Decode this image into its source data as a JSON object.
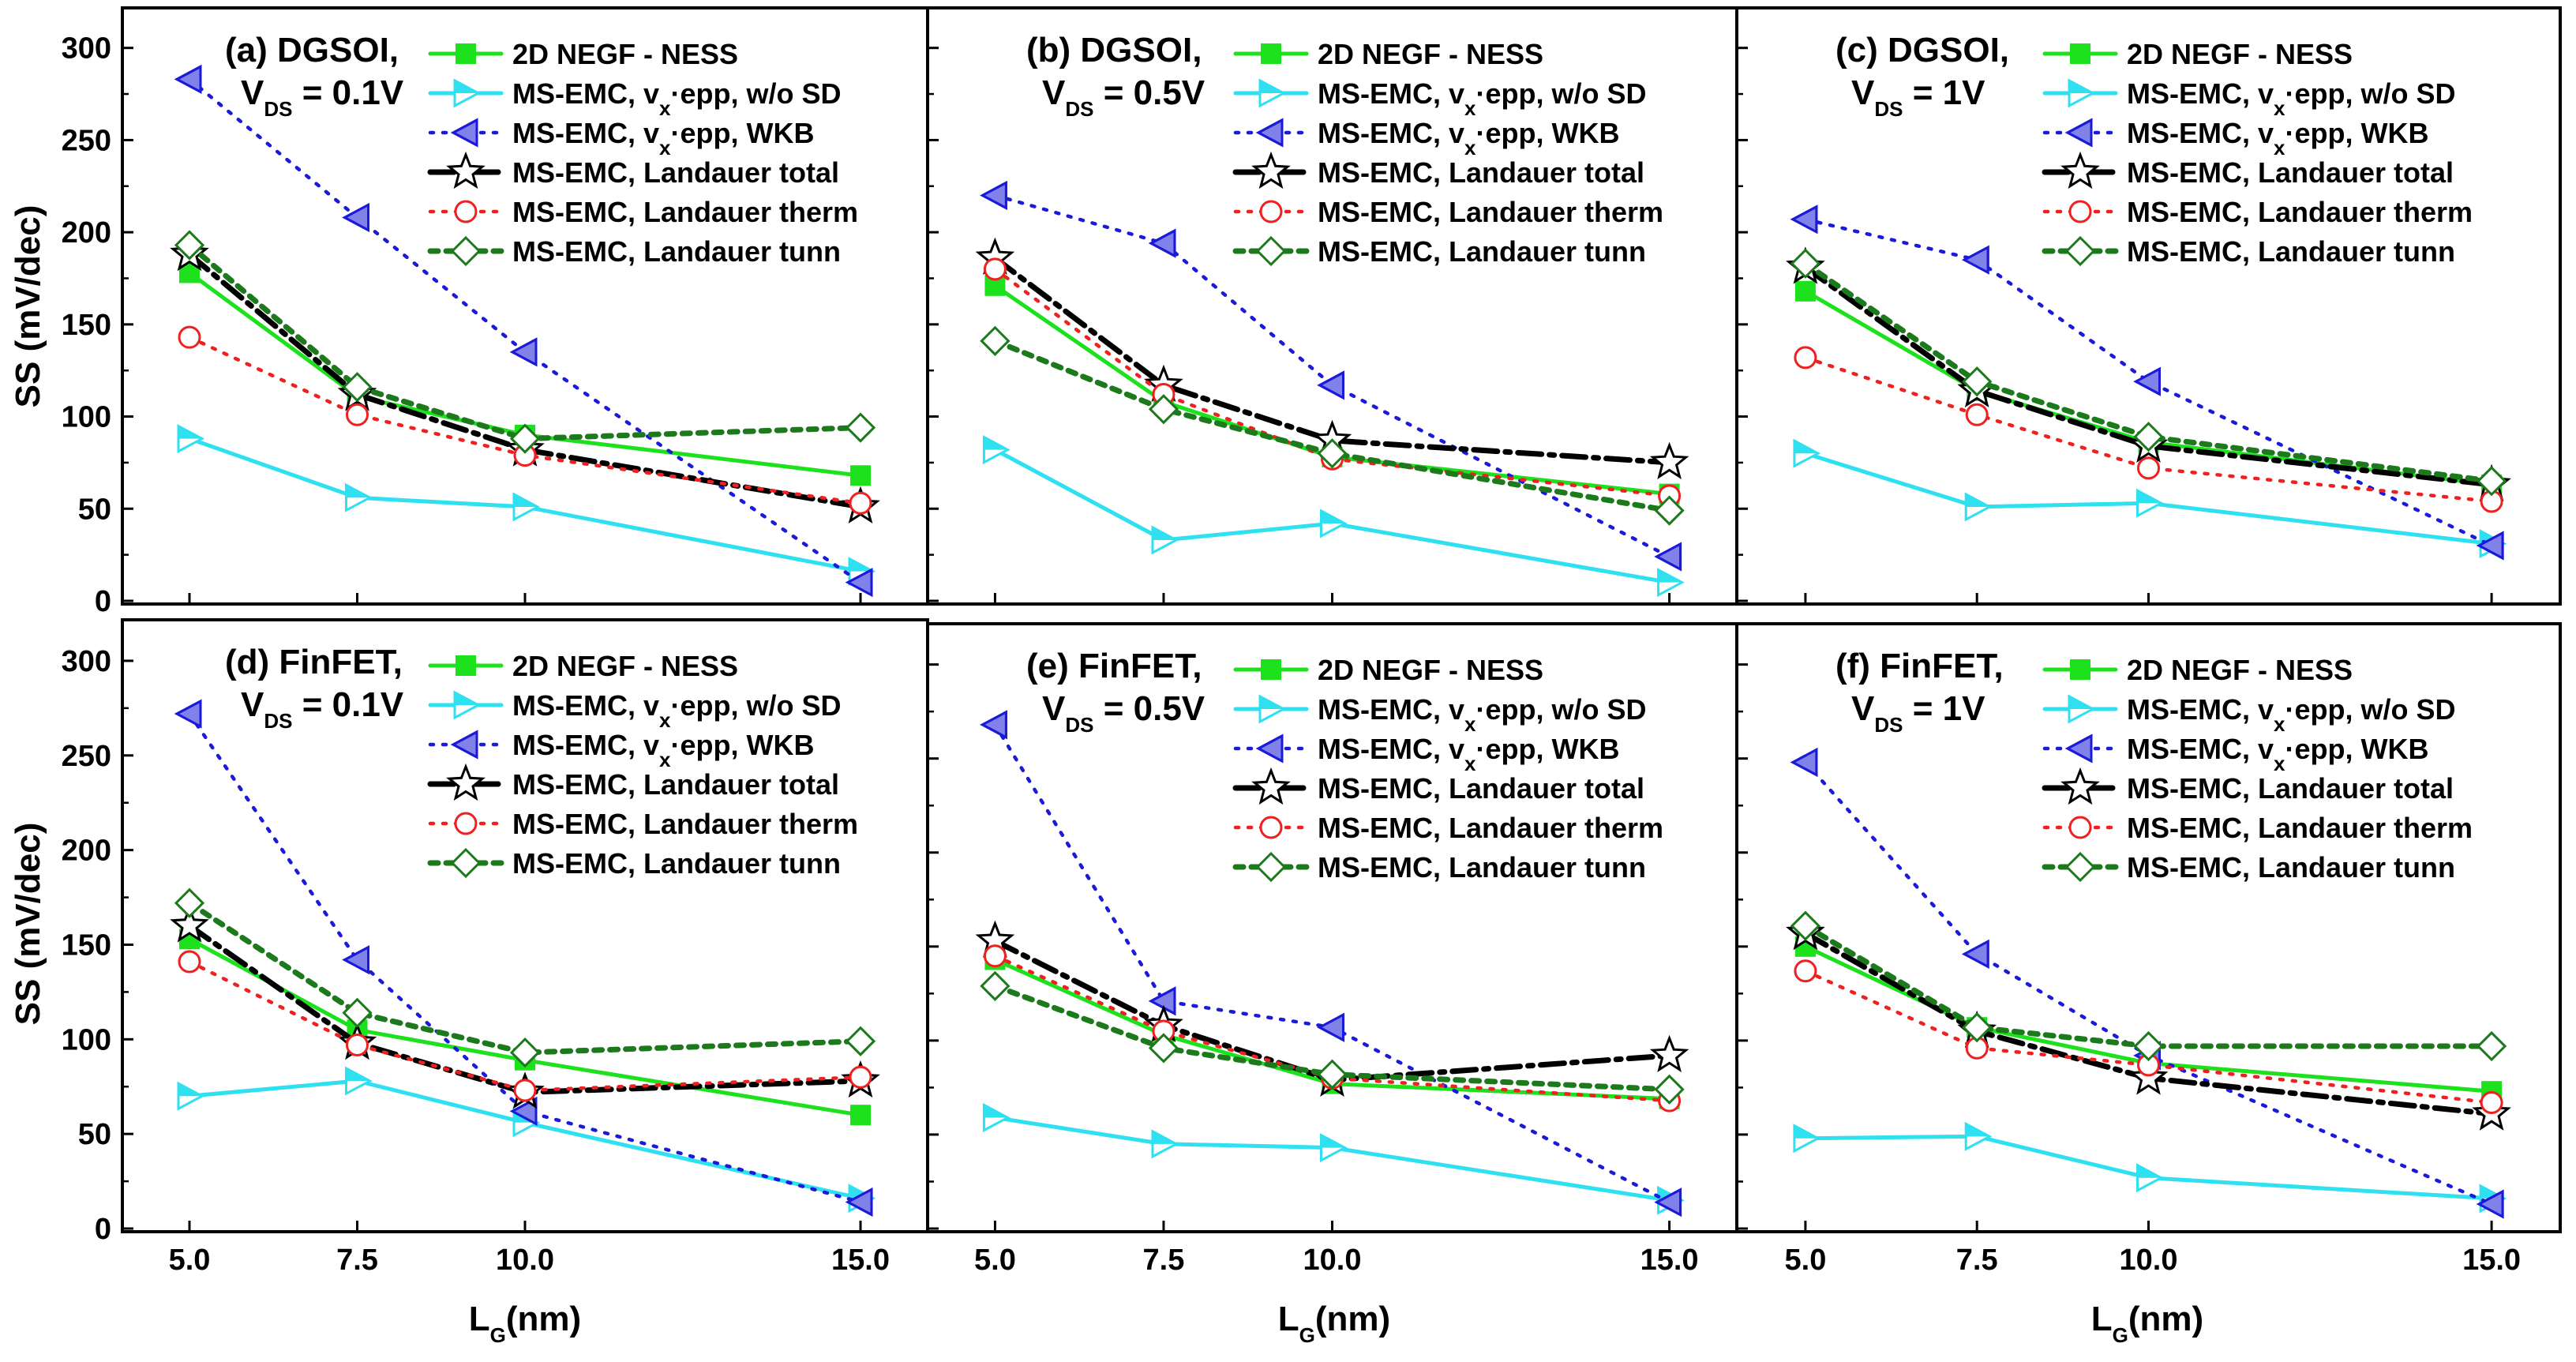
{
  "figure": {
    "y_axis_label": "SS (mV/dec)",
    "x_axis_label": "L",
    "x_axis_label_sub": "G",
    "x_axis_label_unit": "(nm)"
  },
  "legend_entries": [
    {
      "key": "negf",
      "parts": [
        {
          "t": "2D NEGF - NESS"
        }
      ]
    },
    {
      "key": "wosd",
      "parts": [
        {
          "t": "MS-EMC, v"
        },
        {
          "t": "x",
          "sub": true
        },
        {
          "t": "·epp, w/o SD"
        }
      ]
    },
    {
      "key": "wkb",
      "parts": [
        {
          "t": "MS-EMC, v"
        },
        {
          "t": "x",
          "sub": true
        },
        {
          "t": "·epp, WKB"
        }
      ]
    },
    {
      "key": "total",
      "parts": [
        {
          "t": "MS-EMC, Landauer total"
        }
      ]
    },
    {
      "key": "therm",
      "parts": [
        {
          "t": "MS-EMC, Landauer therm"
        }
      ]
    },
    {
      "key": "tunn",
      "parts": [
        {
          "t": "MS-EMC, Landauer tunn"
        }
      ]
    }
  ],
  "series_styles": {
    "negf": {
      "color": "#1ee11e",
      "dash": "",
      "width": 5,
      "marker": "square-filled"
    },
    "wosd": {
      "color": "#2ee0f0",
      "dash": "",
      "width": 5,
      "marker": "triangle-right-half"
    },
    "wkb": {
      "color": "#1a1ad8",
      "dash": "4 12",
      "width": 4.5,
      "marker": "triangle-left-half"
    },
    "total": {
      "color": "#000000",
      "dash": "30 10 6 10",
      "width": 7,
      "marker": "star-open"
    },
    "therm": {
      "color": "#ee2020",
      "dash": "4 12",
      "width": 4.5,
      "marker": "circle-open"
    },
    "tunn": {
      "color": "#1c7a1c",
      "dash": "10 10",
      "width": 7,
      "marker": "diamond-open"
    }
  },
  "chart_data": [
    {
      "type": "line",
      "panel": "a",
      "title_line1": "(a) DGSOI,",
      "title_line2_main": "V",
      "title_line2_sub": "DS",
      "title_line2_rest": " = 0.1V",
      "xlabel": "LG(nm)",
      "ylabel": "SS (mV/dec)",
      "x": [
        5.0,
        7.5,
        10.0,
        15.0
      ],
      "xtick_labels": [
        "5.0",
        "7.5",
        "10.0",
        "15.0"
      ],
      "yticks": [
        0,
        50,
        100,
        150,
        200,
        250,
        300
      ],
      "ylim": [
        0,
        320
      ],
      "series": [
        {
          "key": "negf",
          "name": "2D NEGF - NESS",
          "values": [
            178,
            111,
            90,
            68
          ]
        },
        {
          "key": "wosd",
          "name": "MS-EMC, vx·epp, w/o SD",
          "values": [
            88,
            56,
            51,
            16
          ]
        },
        {
          "key": "wkb",
          "name": "MS-EMC, vx·epp, WKB",
          "values": [
            283,
            208,
            135,
            10
          ]
        },
        {
          "key": "total",
          "name": "MS-EMC, Landauer total",
          "values": [
            188,
            112,
            82,
            51
          ]
        },
        {
          "key": "therm",
          "name": "MS-EMC, Landauer therm",
          "values": [
            143,
            101,
            79,
            53
          ]
        },
        {
          "key": "tunn",
          "name": "MS-EMC, Landauer tunn",
          "values": [
            193,
            116,
            88,
            94
          ]
        }
      ]
    },
    {
      "type": "line",
      "panel": "b",
      "title_line1": "(b) DGSOI,",
      "title_line2_main": "V",
      "title_line2_sub": "DS",
      "title_line2_rest": " = 0.5V",
      "xlabel": "LG(nm)",
      "ylabel": "SS (mV/dec)",
      "x": [
        5.0,
        7.5,
        10.0,
        15.0
      ],
      "xtick_labels": [
        "5.0",
        "7.5",
        "10.0",
        "15.0"
      ],
      "yticks": [
        0,
        50,
        100,
        150,
        200,
        250,
        300
      ],
      "ylim": [
        0,
        320
      ],
      "series": [
        {
          "key": "negf",
          "name": "2D NEGF - NESS",
          "values": [
            171,
            108,
            78,
            58
          ]
        },
        {
          "key": "wosd",
          "name": "MS-EMC, vx·epp, w/o SD",
          "values": [
            82,
            33,
            42,
            10
          ]
        },
        {
          "key": "wkb",
          "name": "MS-EMC, vx·epp, WKB",
          "values": [
            220,
            194,
            117,
            24
          ]
        },
        {
          "key": "total",
          "name": "MS-EMC, Landauer total",
          "values": [
            186,
            117,
            87,
            75
          ]
        },
        {
          "key": "therm",
          "name": "MS-EMC, Landauer therm",
          "values": [
            180,
            112,
            77,
            57
          ]
        },
        {
          "key": "tunn",
          "name": "MS-EMC, Landauer tunn",
          "values": [
            141,
            104,
            80,
            49
          ]
        }
      ]
    },
    {
      "type": "line",
      "panel": "c",
      "title_line1": "(c) DGSOI,",
      "title_line2_main": "V",
      "title_line2_sub": "DS",
      "title_line2_rest": " = 1V",
      "xlabel": "LG(nm)",
      "ylabel": "SS (mV/dec)",
      "x": [
        5.0,
        7.5,
        10.0,
        15.0
      ],
      "xtick_labels": [
        "5.0",
        "7.5",
        "10.0",
        "15.0"
      ],
      "yticks": [
        0,
        50,
        100,
        150,
        200,
        250,
        300
      ],
      "ylim": [
        0,
        320
      ],
      "series": [
        {
          "key": "negf",
          "name": "2D NEGF - NESS",
          "values": [
            168,
            114,
            86,
            63
          ]
        },
        {
          "key": "wosd",
          "name": "MS-EMC, vx·epp, w/o SD",
          "values": [
            80,
            51,
            53,
            31
          ]
        },
        {
          "key": "wkb",
          "name": "MS-EMC, vx·epp, WKB",
          "values": [
            207,
            185,
            119,
            30
          ]
        },
        {
          "key": "total",
          "name": "MS-EMC, Landauer total",
          "values": [
            181,
            114,
            84,
            63
          ]
        },
        {
          "key": "therm",
          "name": "MS-EMC, Landauer therm",
          "values": [
            132,
            101,
            72,
            54
          ]
        },
        {
          "key": "tunn",
          "name": "MS-EMC, Landauer tunn",
          "values": [
            183,
            119,
            89,
            65
          ]
        }
      ]
    },
    {
      "type": "line",
      "panel": "d",
      "title_line1": "(d) FinFET,",
      "title_line2_main": "V",
      "title_line2_sub": "DS",
      "title_line2_rest": " = 0.1V",
      "xlabel": "LG(nm)",
      "ylabel": "SS (mV/dec)",
      "x": [
        5.0,
        7.5,
        10.0,
        15.0
      ],
      "xtick_labels": [
        "5.0",
        "7.5",
        "10.0",
        "15.0"
      ],
      "yticks": [
        0,
        50,
        100,
        150,
        200,
        250,
        300
      ],
      "ylim": [
        0,
        320
      ],
      "series": [
        {
          "key": "negf",
          "name": "2D NEGF - NESS",
          "values": [
            153,
            105,
            89,
            60
          ]
        },
        {
          "key": "wosd",
          "name": "MS-EMC, vx·epp, w/o SD",
          "values": [
            70,
            78,
            56,
            16
          ]
        },
        {
          "key": "wkb",
          "name": "MS-EMC, vx·epp, WKB",
          "values": [
            272,
            142,
            62,
            14
          ]
        },
        {
          "key": "total",
          "name": "MS-EMC, Landauer total",
          "values": [
            160,
            98,
            72,
            78
          ]
        },
        {
          "key": "therm",
          "name": "MS-EMC, Landauer therm",
          "values": [
            141,
            97,
            73,
            80
          ]
        },
        {
          "key": "tunn",
          "name": "MS-EMC, Landauer tunn",
          "values": [
            172,
            114,
            93,
            99
          ]
        }
      ]
    },
    {
      "type": "line",
      "panel": "e",
      "title_line1": "(e) FinFET,",
      "title_line2_main": "V",
      "title_line2_sub": "DS",
      "title_line2_rest": " = 0.5V",
      "xlabel": "LG(nm)",
      "ylabel": "SS (mV/dec)",
      "x": [
        5.0,
        7.5,
        10.0,
        15.0
      ],
      "xtick_labels": [
        "5.0",
        "7.5",
        "10.0",
        "15.0"
      ],
      "yticks": [
        0,
        50,
        100,
        150,
        200,
        250,
        300
      ],
      "ylim": [
        0,
        320
      ],
      "series": [
        {
          "key": "negf",
          "name": "2D NEGF - NESS",
          "values": [
            143,
            103,
            77,
            69
          ]
        },
        {
          "key": "wosd",
          "name": "MS-EMC, vx·epp, w/o SD",
          "values": [
            59,
            45,
            43,
            15
          ]
        },
        {
          "key": "wkb",
          "name": "MS-EMC, vx·epp, WKB",
          "values": [
            268,
            121,
            107,
            14
          ]
        },
        {
          "key": "total",
          "name": "MS-EMC, Landauer total",
          "values": [
            153,
            108,
            79,
            92
          ]
        },
        {
          "key": "therm",
          "name": "MS-EMC, Landauer therm",
          "values": [
            145,
            105,
            80,
            68
          ]
        },
        {
          "key": "tunn",
          "name": "MS-EMC, Landauer tunn",
          "values": [
            129,
            96,
            82,
            74
          ]
        }
      ]
    },
    {
      "type": "line",
      "panel": "f",
      "title_line1": "(f) FinFET,",
      "title_line2_main": "V",
      "title_line2_sub": "DS",
      "title_line2_rest": " = 1V",
      "xlabel": "LG(nm)",
      "ylabel": "SS (mV/dec)",
      "x": [
        5.0,
        7.5,
        10.0,
        15.0
      ],
      "xtick_labels": [
        "5.0",
        "7.5",
        "10.0",
        "15.0"
      ],
      "yticks": [
        0,
        50,
        100,
        150,
        200,
        250,
        300
      ],
      "ylim": [
        0,
        320
      ],
      "series": [
        {
          "key": "negf",
          "name": "2D NEGF - NESS",
          "values": [
            150,
            107,
            88,
            73
          ]
        },
        {
          "key": "wosd",
          "name": "MS-EMC, vx·epp, w/o SD",
          "values": [
            48,
            49,
            27,
            16
          ]
        },
        {
          "key": "wkb",
          "name": "MS-EMC, vx·epp, WKB",
          "values": [
            248,
            146,
            92,
            13
          ]
        },
        {
          "key": "total",
          "name": "MS-EMC, Landauer total",
          "values": [
            157,
            105,
            80,
            61
          ]
        },
        {
          "key": "therm",
          "name": "MS-EMC, Landauer therm",
          "values": [
            137,
            96,
            87,
            67
          ]
        },
        {
          "key": "tunn",
          "name": "MS-EMC, Landauer tunn",
          "values": [
            161,
            107,
            97,
            97
          ]
        }
      ]
    }
  ]
}
